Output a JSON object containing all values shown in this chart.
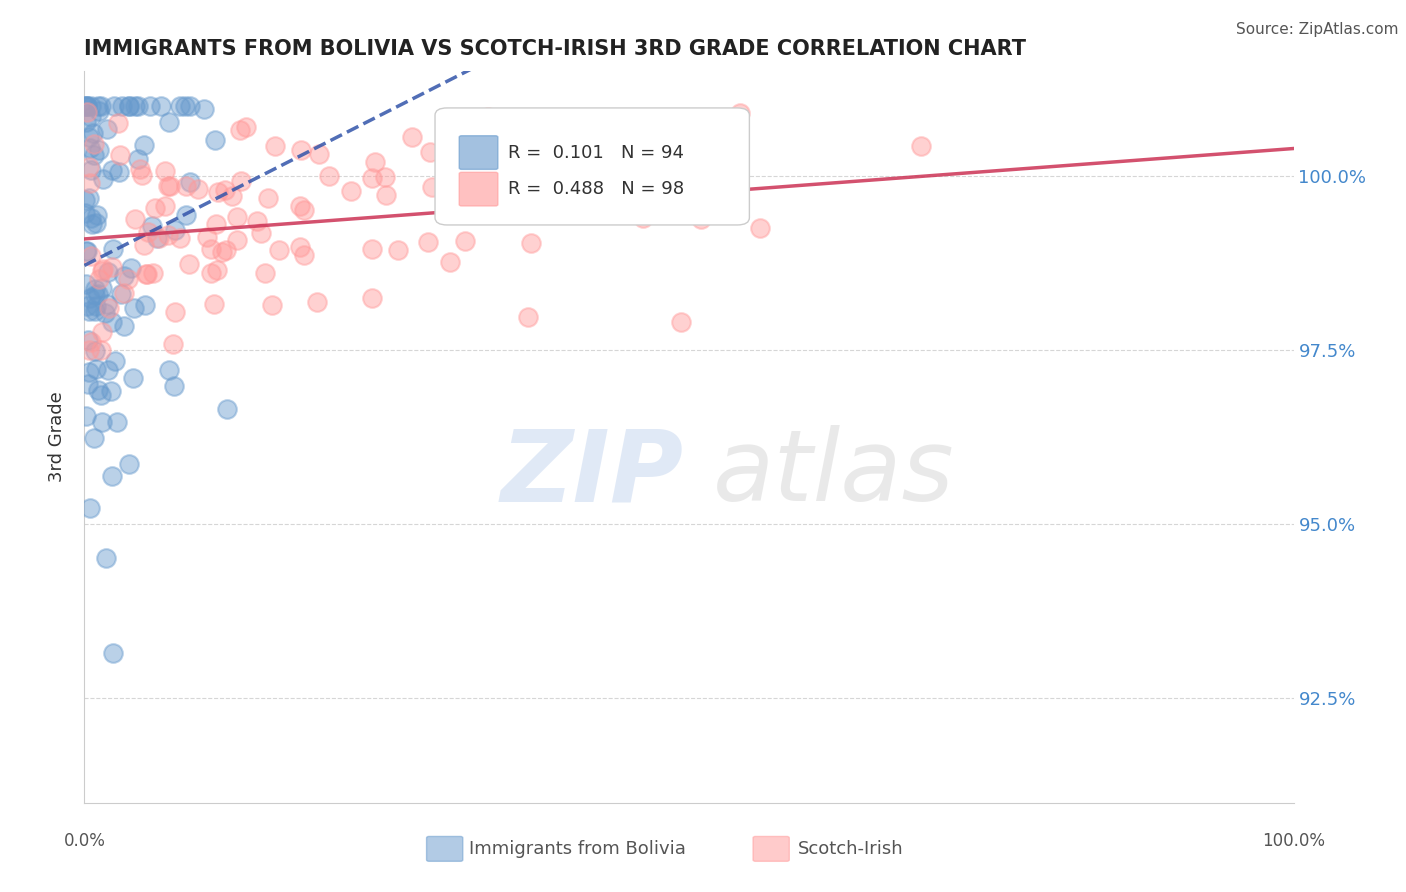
{
  "title": "IMMIGRANTS FROM BOLIVIA VS SCOTCH-IRISH 3RD GRADE CORRELATION CHART",
  "source": "Source: ZipAtlas.com",
  "ylabel": "3rd Grade",
  "right_yticks": [
    92.5,
    95.0,
    97.5,
    100.0
  ],
  "right_ytick_labels": [
    "92.5%",
    "95.0%",
    "97.5%",
    "100.0%"
  ],
  "xmin": 0.0,
  "xmax": 100.0,
  "ymin": 91.0,
  "ymax": 101.5,
  "blue_label": "Immigrants from Bolivia",
  "pink_label": "Scotch-Irish",
  "blue_R": 0.101,
  "blue_N": 94,
  "pink_R": 0.488,
  "pink_N": 98,
  "blue_color": "#6699cc",
  "pink_color": "#ff9999",
  "blue_trend_color": "#3355aa",
  "pink_trend_color": "#cc3355",
  "background_color": "#ffffff",
  "grid_color": "#cccccc"
}
